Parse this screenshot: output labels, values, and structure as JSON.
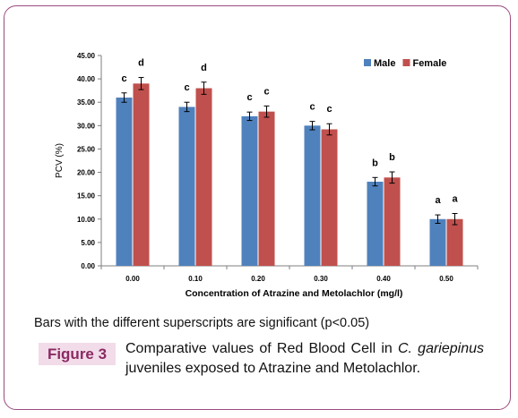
{
  "chart_data": {
    "type": "bar",
    "categories": [
      "0.00",
      "0.10",
      "0.20",
      "0.30",
      "0.40",
      "0.50"
    ],
    "series": [
      {
        "name": "Male",
        "color": "#4f81bd",
        "values": [
          36.0,
          34.0,
          32.0,
          30.0,
          18.0,
          10.0
        ],
        "errors": [
          1.0,
          1.0,
          0.9,
          0.9,
          0.9,
          0.9
        ],
        "labels": [
          "c",
          "c",
          "c",
          "c",
          "b",
          "a"
        ]
      },
      {
        "name": "Female",
        "color": "#c0504d",
        "values": [
          39.0,
          38.0,
          33.0,
          29.2,
          18.9,
          10.0
        ],
        "errors": [
          1.3,
          1.3,
          1.2,
          1.2,
          1.2,
          1.2
        ],
        "labels": [
          "d",
          "d",
          "c",
          "c",
          "b",
          "a"
        ]
      }
    ],
    "yticks": [
      "0.00",
      "5.00",
      "10.00",
      "15.00",
      "20.00",
      "25.00",
      "30.00",
      "35.00",
      "40.00",
      "45.00"
    ],
    "ylim": [
      0,
      45
    ],
    "ylabel": "PCV (%)",
    "xlabel": "Concentration of Atrazine and Metolachlor (mg/l)",
    "grid": false,
    "legend_position": "top-right"
  },
  "note": "Bars with the different superscripts are significant (p<0.05)",
  "figure": {
    "label": "Figure 3",
    "caption_pre": "Comparative values of Red Blood Cell in ",
    "caption_species": "C. gariepinus",
    "caption_post": " juveniles exposed to Atrazine and Metolachlor."
  }
}
